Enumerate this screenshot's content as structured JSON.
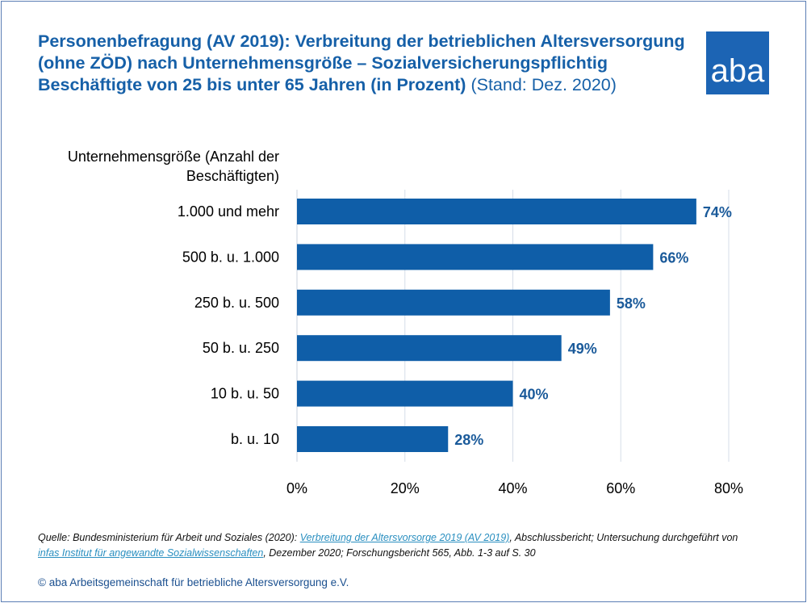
{
  "title": {
    "main": "Personenbefragung (AV 2019): Verbreitung der betrieblichen Altersversorgung (ohne ZÖD) nach Unternehmensgröße – Sozialversicherungspflichtig Beschäftigte von 25 bis unter 65 Jahren (in Prozent)",
    "stand": "(Stand: Dez. 2020)"
  },
  "logo": "aba",
  "chart_data": {
    "type": "bar",
    "orientation": "horizontal",
    "ylabel": "Unternehmensgröße (Anzahl der Beschäftigten)",
    "categories": [
      "1.000 und mehr",
      "500 b. u. 1.000",
      "250 b. u. 500",
      "50 b. u. 250",
      "10 b. u. 50",
      "b. u. 10"
    ],
    "values": [
      74,
      66,
      58,
      49,
      40,
      28
    ],
    "data_labels": [
      "74%",
      "66%",
      "58%",
      "49%",
      "40%",
      "28%"
    ],
    "xlim": [
      0,
      80
    ],
    "xticks": [
      0,
      20,
      40,
      60,
      80
    ],
    "xtick_labels": [
      "0%",
      "20%",
      "40%",
      "60%",
      "80%"
    ],
    "grid": true,
    "bar_color": "#0f5ea8",
    "label_color": "#1a5a9a"
  },
  "source": {
    "prefix": "Quelle: Bundesministerium für Arbeit und Soziales (2020): ",
    "link1": "Verbreitung der Altersvorsorge 2019 (AV 2019)",
    "mid": ", Abschlussbericht; Untersuchung durchgeführt von ",
    "link2": "infas Institut für angewandte Sozialwissenschaften",
    "suffix": ", Dezember 2020; Forschungsbericht 565, Abb. 1-3 auf S. 30"
  },
  "copyright": "© aba Arbeitsgemeinschaft für betriebliche Altersversorgung e.V."
}
